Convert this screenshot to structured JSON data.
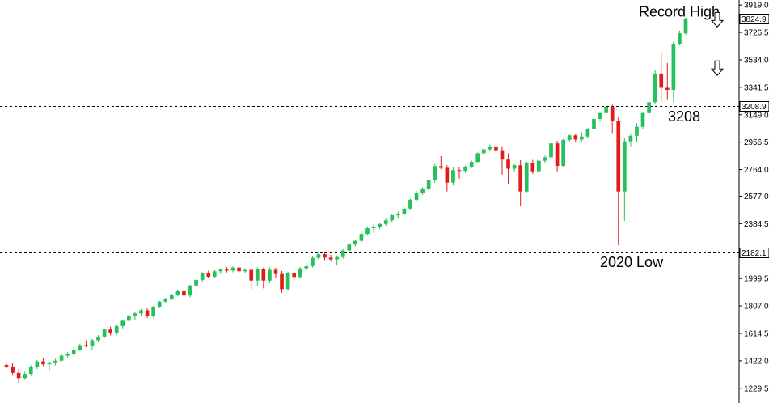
{
  "chart_data": {
    "type": "candlestick",
    "y_ticks": [
      "3919.0",
      "3726.5",
      "3534.0",
      "3341.5",
      "3149.0",
      "2956.5",
      "2764.0",
      "2577.0",
      "2384.5",
      "1999.5",
      "1807.0",
      "1614.5",
      "1422.0",
      "1229.5"
    ],
    "ylim": [
      1160,
      3920
    ],
    "grid": false,
    "colors": {
      "up": "#26c15a",
      "down": "#e31b1b",
      "level_line": "#000000"
    },
    "levels": [
      {
        "value": 3824.9,
        "label": "3824.9"
      },
      {
        "value": 3208.9,
        "label": "3208.9"
      },
      {
        "value": 2182.1,
        "label": "2182.1"
      }
    ],
    "annotations": {
      "record_high": "Record High",
      "level_3208": "3208",
      "low_2020": "2020 Low"
    },
    "arrows": [
      {
        "icon": "down-arrow-outline",
        "price": 3810
      },
      {
        "icon": "down-arrow-outline",
        "price": 3470
      }
    ],
    "candles": [
      [
        1393,
        1405,
        1368,
        1382
      ],
      [
        1382,
        1404,
        1318,
        1337
      ],
      [
        1337,
        1364,
        1267,
        1300
      ],
      [
        1300,
        1345,
        1288,
        1330
      ],
      [
        1330,
        1392,
        1315,
        1378
      ],
      [
        1378,
        1428,
        1363,
        1418
      ],
      [
        1418,
        1438,
        1385,
        1398
      ],
      [
        1398,
        1412,
        1356,
        1405
      ],
      [
        1405,
        1436,
        1390,
        1423
      ],
      [
        1423,
        1468,
        1413,
        1458
      ],
      [
        1458,
        1485,
        1440,
        1469
      ],
      [
        1469,
        1510,
        1454,
        1500
      ],
      [
        1500,
        1542,
        1490,
        1532
      ],
      [
        1532,
        1566,
        1517,
        1526
      ],
      [
        1526,
        1576,
        1496,
        1566
      ],
      [
        1566,
        1603,
        1553,
        1592
      ],
      [
        1592,
        1648,
        1582,
        1642
      ],
      [
        1642,
        1662,
        1600,
        1616
      ],
      [
        1616,
        1674,
        1605,
        1666
      ],
      [
        1666,
        1712,
        1650,
        1703
      ],
      [
        1703,
        1748,
        1693,
        1740
      ],
      [
        1740,
        1762,
        1705,
        1755
      ],
      [
        1755,
        1786,
        1740,
        1776
      ],
      [
        1776,
        1790,
        1722,
        1736
      ],
      [
        1736,
        1808,
        1724,
        1801
      ],
      [
        1801,
        1843,
        1791,
        1837
      ],
      [
        1837,
        1865,
        1827,
        1858
      ],
      [
        1858,
        1892,
        1848,
        1885
      ],
      [
        1885,
        1916,
        1876,
        1910
      ],
      [
        1910,
        1930,
        1860,
        1880
      ],
      [
        1880,
        1956,
        1866,
        1950
      ],
      [
        1950,
        1997,
        1888,
        1990
      ],
      [
        1990,
        2044,
        1978,
        2036
      ],
      [
        2036,
        2054,
        2000,
        2012
      ],
      [
        2012,
        2058,
        2002,
        2050
      ],
      [
        2050,
        2071,
        2030,
        2062
      ],
      [
        2062,
        2081,
        2042,
        2055
      ],
      [
        2055,
        2083,
        2043,
        2076
      ],
      [
        2076,
        2082,
        2028,
        2050
      ],
      [
        2050,
        2071,
        2038,
        2060
      ],
      [
        2060,
        2070,
        1915,
        1985
      ],
      [
        1985,
        2078,
        1948,
        2066
      ],
      [
        2066,
        2076,
        1930,
        1985
      ],
      [
        1985,
        2078,
        1965,
        2060
      ],
      [
        2060,
        2074,
        2001,
        2031
      ],
      [
        2031,
        2052,
        1900,
        1925
      ],
      [
        1925,
        2048,
        1913,
        2035
      ],
      [
        2035,
        2045,
        1988,
        2010
      ],
      [
        2010,
        2080,
        1998,
        2070
      ],
      [
        2070,
        2108,
        2053,
        2086
      ],
      [
        2086,
        2154,
        2076,
        2144
      ],
      [
        2144,
        2178,
        2132,
        2170
      ],
      [
        2170,
        2182,
        2128,
        2146
      ],
      [
        2146,
        2165,
        2118,
        2134
      ],
      [
        2134,
        2162,
        2090,
        2150
      ],
      [
        2150,
        2204,
        2138,
        2196
      ],
      [
        2196,
        2248,
        2186,
        2238
      ],
      [
        2238,
        2272,
        2225,
        2264
      ],
      [
        2264,
        2325,
        2253,
        2312
      ],
      [
        2312,
        2360,
        2300,
        2352
      ],
      [
        2352,
        2380,
        2320,
        2360
      ],
      [
        2360,
        2392,
        2345,
        2382
      ],
      [
        2382,
        2422,
        2370,
        2408
      ],
      [
        2408,
        2455,
        2396,
        2443
      ],
      [
        2443,
        2470,
        2420,
        2452
      ],
      [
        2452,
        2500,
        2440,
        2490
      ],
      [
        2490,
        2560,
        2478,
        2552
      ],
      [
        2552,
        2612,
        2540,
        2598
      ],
      [
        2598,
        2640,
        2586,
        2630
      ],
      [
        2630,
        2695,
        2618,
        2688
      ],
      [
        2688,
        2802,
        2672,
        2788
      ],
      [
        2788,
        2858,
        2766,
        2776
      ],
      [
        2776,
        2795,
        2610,
        2672
      ],
      [
        2672,
        2780,
        2652,
        2760
      ],
      [
        2760,
        2784,
        2700,
        2755
      ],
      [
        2755,
        2795,
        2740,
        2784
      ],
      [
        2784,
        2828,
        2772,
        2818
      ],
      [
        2818,
        2885,
        2808,
        2878
      ],
      [
        2878,
        2918,
        2862,
        2906
      ],
      [
        2906,
        2940,
        2892,
        2921
      ],
      [
        2921,
        2934,
        2880,
        2900
      ],
      [
        2900,
        2922,
        2728,
        2834
      ],
      [
        2834,
        2878,
        2658,
        2770
      ],
      [
        2770,
        2802,
        2750,
        2794
      ],
      [
        2794,
        2830,
        2510,
        2610
      ],
      [
        2610,
        2822,
        2598,
        2808
      ],
      [
        2808,
        2832,
        2734,
        2752
      ],
      [
        2752,
        2836,
        2740,
        2826
      ],
      [
        2826,
        2862,
        2810,
        2850
      ],
      [
        2850,
        2958,
        2845,
        2948
      ],
      [
        2948,
        2966,
        2752,
        2790
      ],
      [
        2790,
        2980,
        2780,
        2972
      ],
      [
        2972,
        3012,
        2958,
        3004
      ],
      [
        3004,
        3014,
        2954,
        2975
      ],
      [
        2975,
        3026,
        2960,
        2996
      ],
      [
        2996,
        3058,
        2985,
        3050
      ],
      [
        3050,
        3132,
        3040,
        3120
      ],
      [
        3120,
        3168,
        3108,
        3160
      ],
      [
        3160,
        3212,
        3150,
        3205
      ],
      [
        3205,
        3220,
        3020,
        3102
      ],
      [
        3102,
        3130,
        2232,
        2610
      ],
      [
        2610,
        2988,
        2405,
        2962
      ],
      [
        2962,
        3012,
        2922,
        3001
      ],
      [
        3001,
        3088,
        2960,
        3064
      ],
      [
        3064,
        3166,
        3050,
        3160
      ],
      [
        3160,
        3244,
        3148,
        3237
      ],
      [
        3237,
        3462,
        3222,
        3438
      ],
      [
        3438,
        3588,
        3240,
        3338
      ],
      [
        3338,
        3512,
        3258,
        3324
      ],
      [
        3324,
        3660,
        3238,
        3647
      ],
      [
        3647,
        3740,
        3639,
        3720
      ],
      [
        3720,
        3832,
        3710,
        3824
      ]
    ]
  }
}
